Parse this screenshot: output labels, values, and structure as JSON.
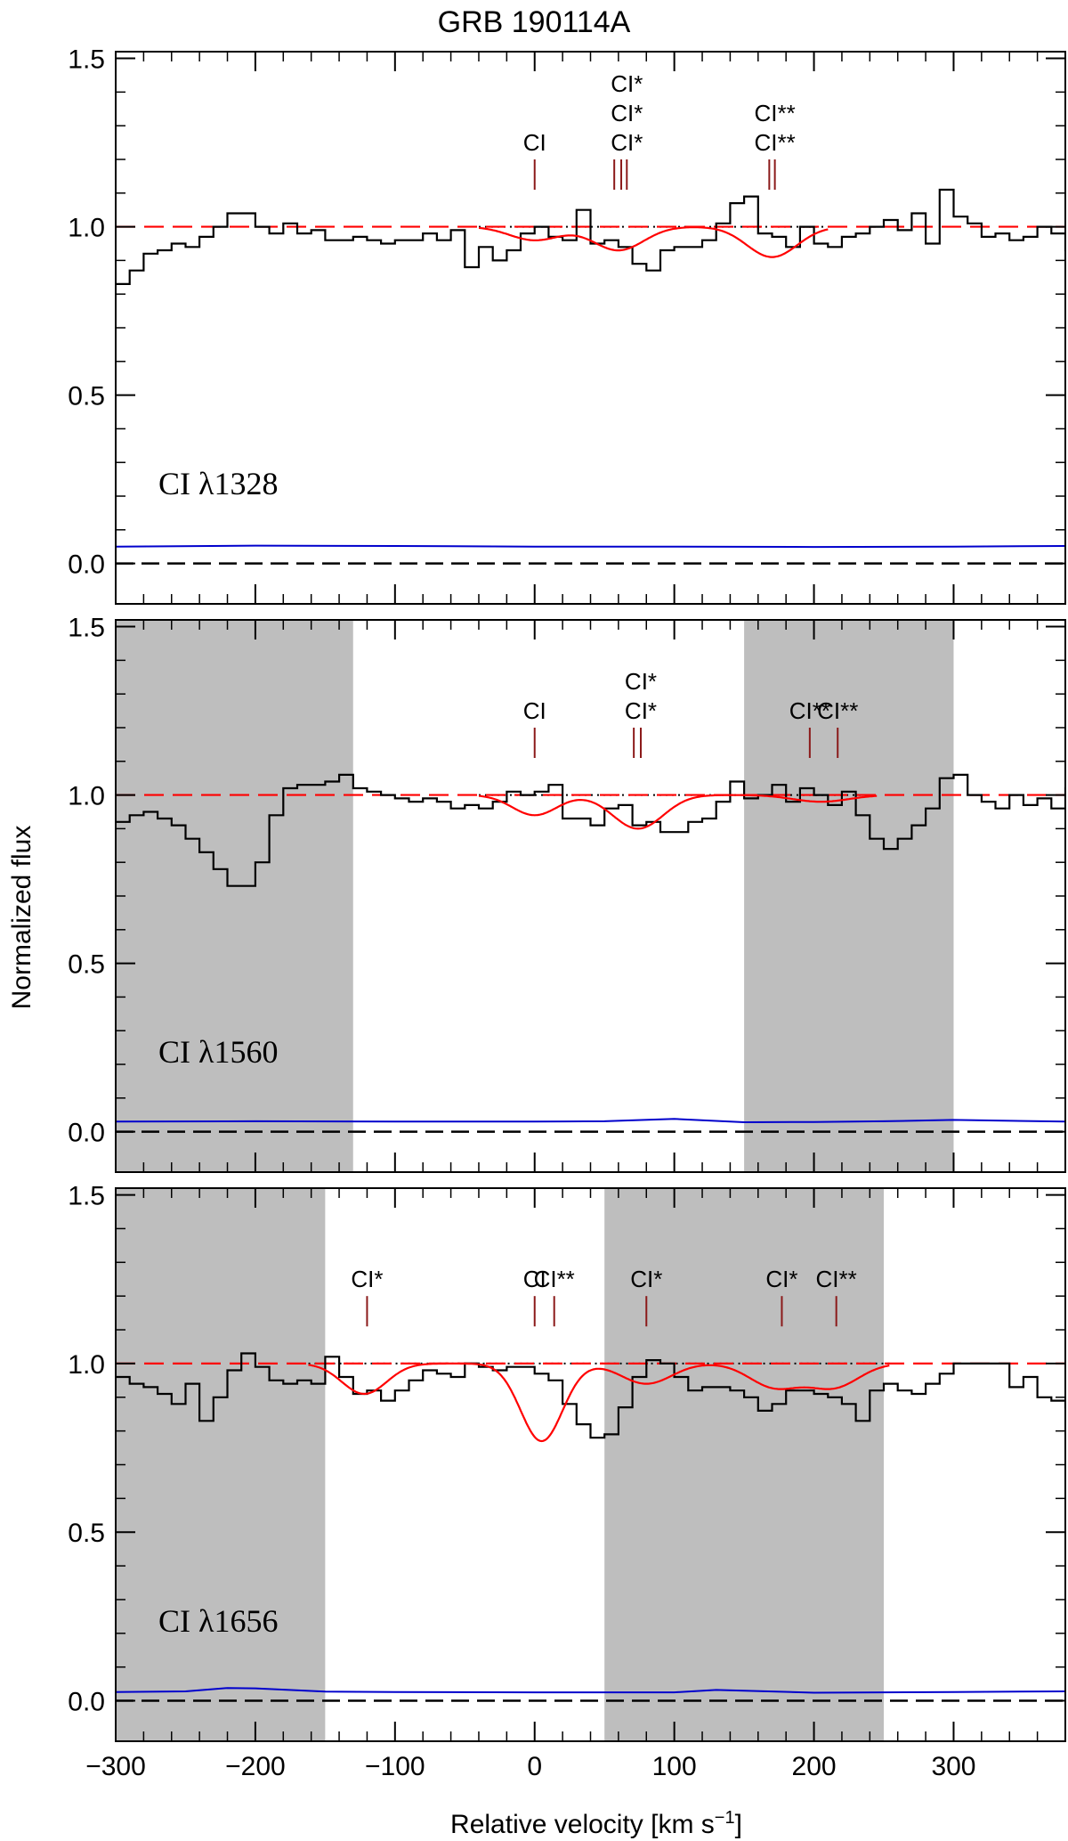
{
  "title": "GRB 190114A",
  "xlabel": "Relative velocity [km s",
  "xlabel_sup": "−1",
  "xlabel_close": "]",
  "ylabel": "Normalized flux",
  "colors": {
    "data": "#000000",
    "model": "#ff0000",
    "error": "#0000cc",
    "marker": "#8b1a1a",
    "shade": "#bebebe"
  },
  "chart_data": [
    {
      "type": "line",
      "panel_label": "CI λ1328",
      "xlim": [
        -300,
        380
      ],
      "ylim": [
        -0.12,
        1.52
      ],
      "yticks": [
        0.0,
        0.5,
        1.0,
        1.5
      ],
      "ytick_labels": [
        "0.0",
        "0.5",
        "1.0",
        "1.5"
      ],
      "shaded": [],
      "markers": [
        {
          "v": 0,
          "labels": [
            "CI"
          ]
        },
        {
          "v": 57,
          "labels": []
        },
        {
          "v": 62,
          "labels": []
        },
        {
          "v": 66,
          "labels": [
            "CI*",
            "CI*",
            "CI*"
          ]
        },
        {
          "v": 168,
          "labels": []
        },
        {
          "v": 172,
          "labels": [
            "CI**",
            "CI**"
          ]
        }
      ],
      "model_lines": [
        {
          "v": 0,
          "depth": 0.04,
          "sigma": 18
        },
        {
          "v": 60,
          "depth": 0.07,
          "sigma": 18
        },
        {
          "v": 170,
          "depth": 0.09,
          "sigma": 18
        }
      ],
      "data": {
        "x0": -300,
        "step": 10,
        "y": [
          0.83,
          0.87,
          0.92,
          0.93,
          0.95,
          0.94,
          0.97,
          1.0,
          1.04,
          1.04,
          1.0,
          0.98,
          1.01,
          0.98,
          0.99,
          0.96,
          0.96,
          0.97,
          0.96,
          0.95,
          0.96,
          0.96,
          0.98,
          0.96,
          0.99,
          0.88,
          0.94,
          0.9,
          0.93,
          0.98,
          1.0,
          0.97,
          0.96,
          1.05,
          0.95,
          0.96,
          0.94,
          0.89,
          0.87,
          0.93,
          0.94,
          0.94,
          0.96,
          1.01,
          1.07,
          1.09,
          0.98,
          0.97,
          0.94,
          1.0,
          0.95,
          0.94,
          0.97,
          0.98,
          1.0,
          1.02,
          0.99,
          1.04,
          0.95,
          1.11,
          1.03,
          1.01,
          0.97,
          0.98,
          0.96,
          0.97,
          1.0,
          0.98,
          0.93,
          1.02,
          0.98,
          1.1
        ]
      },
      "error": {
        "x": [
          -300,
          -200,
          -100,
          0,
          100,
          200,
          300,
          380
        ],
        "y": [
          0.05,
          0.053,
          0.052,
          0.05,
          0.05,
          0.049,
          0.05,
          0.052
        ]
      }
    },
    {
      "type": "line",
      "panel_label": "CI λ1560",
      "xlim": [
        -300,
        380
      ],
      "ylim": [
        -0.12,
        1.52
      ],
      "yticks": [
        0.0,
        0.5,
        1.0,
        1.5
      ],
      "ytick_labels": [
        "0.0",
        "0.5",
        "1.0",
        "1.5"
      ],
      "shaded": [
        [
          -300,
          -130
        ],
        [
          150,
          300
        ]
      ],
      "markers": [
        {
          "v": 0,
          "labels": [
            "CI"
          ]
        },
        {
          "v": 71,
          "labels": []
        },
        {
          "v": 76,
          "labels": [
            "CI*",
            "CI*"
          ]
        },
        {
          "v": 197,
          "labels": [
            "CI**"
          ]
        },
        {
          "v": 217,
          "labels": [
            "CI**"
          ]
        }
      ],
      "model_lines": [
        {
          "v": 0,
          "depth": 0.06,
          "sigma": 16
        },
        {
          "v": 74,
          "depth": 0.1,
          "sigma": 18
        },
        {
          "v": 205,
          "depth": 0.02,
          "sigma": 20
        }
      ],
      "data": {
        "x0": -300,
        "step": 10,
        "y": [
          0.92,
          0.94,
          0.95,
          0.93,
          0.91,
          0.87,
          0.83,
          0.78,
          0.73,
          0.73,
          0.8,
          0.94,
          1.02,
          1.03,
          1.03,
          1.04,
          1.06,
          1.02,
          1.01,
          1.0,
          0.99,
          0.98,
          0.99,
          0.98,
          0.96,
          0.97,
          0.96,
          0.98,
          1.01,
          1.0,
          1.01,
          1.03,
          0.93,
          0.93,
          0.91,
          0.96,
          0.97,
          0.91,
          0.92,
          0.89,
          0.89,
          0.92,
          0.93,
          0.98,
          1.04,
          0.99,
          1.0,
          1.03,
          0.98,
          1.02,
          1.0,
          0.97,
          1.01,
          0.94,
          0.87,
          0.84,
          0.87,
          0.91,
          0.96,
          1.05,
          1.06,
          1.0,
          0.98,
          0.96,
          1.0,
          0.97,
          0.99,
          0.96,
          1.02,
          0.99,
          0.98,
          0.97
        ]
      },
      "error": {
        "x": [
          -300,
          -200,
          -100,
          0,
          50,
          100,
          150,
          200,
          250,
          300,
          380
        ],
        "y": [
          0.03,
          0.031,
          0.03,
          0.03,
          0.031,
          0.038,
          0.028,
          0.029,
          0.031,
          0.035,
          0.03
        ]
      }
    },
    {
      "type": "line",
      "panel_label": "CI λ1656",
      "xlim": [
        -300,
        380
      ],
      "ylim": [
        -0.12,
        1.52
      ],
      "yticks": [
        0.0,
        0.5,
        1.0,
        1.5
      ],
      "ytick_labels": [
        "0.0",
        "0.5",
        "1.0",
        "1.5"
      ],
      "shaded": [
        [
          -300,
          -150
        ],
        [
          50,
          250
        ]
      ],
      "markers": [
        {
          "v": -120,
          "labels": [
            "CI*"
          ]
        },
        {
          "v": 0,
          "labels": [
            "CI"
          ]
        },
        {
          "v": 14,
          "labels": [
            "CI**"
          ]
        },
        {
          "v": 80,
          "labels": [
            "CI*"
          ]
        },
        {
          "v": 177,
          "labels": [
            "CI*"
          ]
        },
        {
          "v": 216,
          "labels": [
            "CI**"
          ]
        }
      ],
      "model_lines": [
        {
          "v": -122,
          "depth": 0.09,
          "sigma": 16
        },
        {
          "v": 5,
          "depth": 0.23,
          "sigma": 15
        },
        {
          "v": 80,
          "depth": 0.06,
          "sigma": 18
        },
        {
          "v": 172,
          "depth": 0.07,
          "sigma": 18
        },
        {
          "v": 214,
          "depth": 0.07,
          "sigma": 18
        }
      ],
      "data": {
        "x0": -300,
        "step": 10,
        "y": [
          0.96,
          0.94,
          0.93,
          0.91,
          0.88,
          0.94,
          0.83,
          0.9,
          0.98,
          1.03,
          0.99,
          0.95,
          0.94,
          0.95,
          0.94,
          1.02,
          0.96,
          0.91,
          0.92,
          0.89,
          0.92,
          0.95,
          0.98,
          0.97,
          0.96,
          1.0,
          0.99,
          0.98,
          0.99,
          0.99,
          0.97,
          0.95,
          0.88,
          0.82,
          0.78,
          0.79,
          0.87,
          0.96,
          1.01,
          1.0,
          0.96,
          0.92,
          0.93,
          0.93,
          0.92,
          0.9,
          0.86,
          0.88,
          0.92,
          0.92,
          0.91,
          0.9,
          0.88,
          0.83,
          0.92,
          0.94,
          0.92,
          0.91,
          0.94,
          0.97,
          1.0,
          1.0,
          1.0,
          1.0,
          0.93,
          0.96,
          0.9,
          0.89,
          0.87,
          0.94,
          0.96,
          1.0
        ]
      },
      "error": {
        "x": [
          -300,
          -250,
          -220,
          -200,
          -150,
          -100,
          0,
          100,
          130,
          200,
          300,
          380
        ],
        "y": [
          0.026,
          0.028,
          0.038,
          0.037,
          0.027,
          0.026,
          0.025,
          0.025,
          0.032,
          0.024,
          0.026,
          0.028
        ]
      }
    }
  ],
  "xaxis": {
    "ticks": [
      -300,
      -200,
      -100,
      0,
      100,
      200,
      300
    ],
    "tick_labels": [
      "−300",
      "−200",
      "−100",
      "0",
      "100",
      "200",
      "300"
    ]
  }
}
